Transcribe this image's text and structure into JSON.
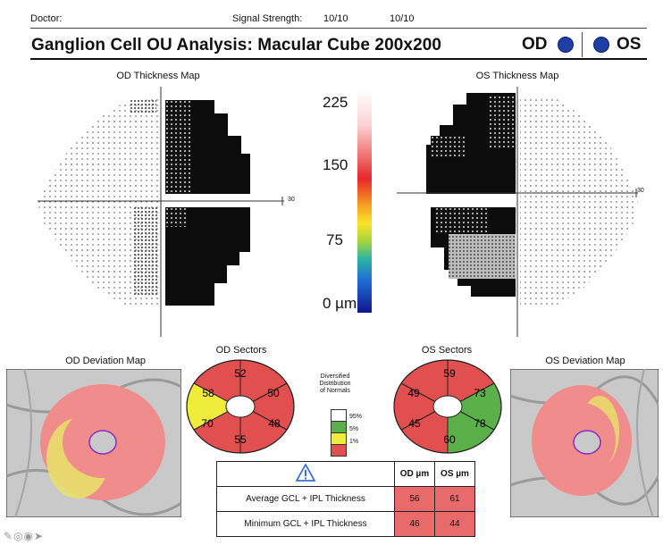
{
  "header": {
    "doctor_label": "Doctor:",
    "signal_label": "Signal Strength:",
    "signal_od": "10/10",
    "signal_os": "10/10",
    "title": "Ganglion Cell OU Analysis: Macular Cube 200x200",
    "od": "OD",
    "os": "OS",
    "dot_color": "#1e3fa3"
  },
  "maps": {
    "od_thickness_title": "OD Thickness Map",
    "os_thickness_title": "OS Thickness Map",
    "od_axis_label": "30",
    "os_axis_label": "30"
  },
  "scale": {
    "labels": [
      "225",
      "150",
      "75",
      "0 µm"
    ]
  },
  "deviation": {
    "od_title": "OD Deviation Map",
    "os_title": "OS Deviation Map"
  },
  "sectors": {
    "od_title": "OD Sectors",
    "os_title": "OS Sectors",
    "od": {
      "top": "52",
      "top_right": "50",
      "bottom_right": "48",
      "bottom": "55",
      "bottom_left": "70",
      "top_left": "58"
    },
    "os": {
      "top": "59",
      "top_right": "73",
      "bottom_right": "78",
      "bottom": "60",
      "bottom_left": "45",
      "top_left": "49"
    },
    "colors": {
      "red": "#e0504f",
      "yellow": "#f0ec3c",
      "green": "#5cb04a",
      "white": "#ffffff"
    }
  },
  "legend": {
    "title_lines": [
      "Diversified",
      "Distribution",
      "of Normals"
    ],
    "labels": [
      "95%",
      "5%",
      "1%"
    ]
  },
  "table": {
    "warning_icon": "warning-triangle-icon",
    "col_od": "OD µm",
    "col_os": "OS µm",
    "rows": [
      {
        "label": "Average GCL + IPL Thickness",
        "od": "56",
        "os": "61"
      },
      {
        "label": "Minimum GCL + IPL Thickness",
        "od": "46",
        "os": "44"
      }
    ]
  }
}
